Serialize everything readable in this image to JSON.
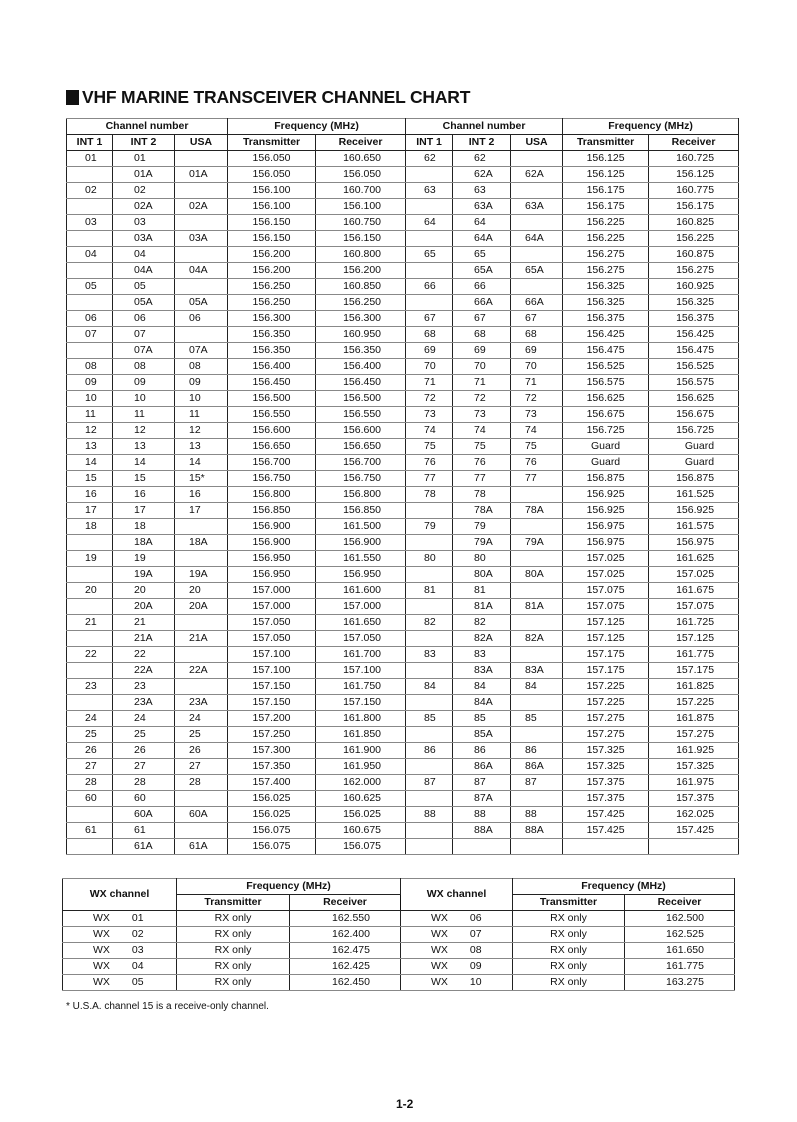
{
  "title": "VHF MARINE TRANSCEIVER CHANNEL CHART",
  "main_table": {
    "group_headers": [
      "Channel number",
      "Frequency (MHz)",
      "Channel number",
      "Frequency (MHz)"
    ],
    "column_headers": [
      "INT 1",
      "INT 2",
      "USA",
      "Transmitter",
      "Receiver",
      "INT 1",
      "INT 2",
      "USA",
      "Transmitter",
      "Receiver"
    ],
    "rows": [
      [
        "01",
        "01",
        "",
        "156.050",
        "160.650",
        "62",
        "62",
        "",
        "156.125",
        "160.725"
      ],
      [
        "",
        "01A",
        "01A",
        "156.050",
        "156.050",
        "",
        "62A",
        "62A",
        "156.125",
        "156.125"
      ],
      [
        "02",
        "02",
        "",
        "156.100",
        "160.700",
        "63",
        "63",
        "",
        "156.175",
        "160.775"
      ],
      [
        "",
        "02A",
        "02A",
        "156.100",
        "156.100",
        "",
        "63A",
        "63A",
        "156.175",
        "156.175"
      ],
      [
        "03",
        "03",
        "",
        "156.150",
        "160.750",
        "64",
        "64",
        "",
        "156.225",
        "160.825"
      ],
      [
        "",
        "03A",
        "03A",
        "156.150",
        "156.150",
        "",
        "64A",
        "64A",
        "156.225",
        "156.225"
      ],
      [
        "04",
        "04",
        "",
        "156.200",
        "160.800",
        "65",
        "65",
        "",
        "156.275",
        "160.875"
      ],
      [
        "",
        "04A",
        "04A",
        "156.200",
        "156.200",
        "",
        "65A",
        "65A",
        "156.275",
        "156.275"
      ],
      [
        "05",
        "05",
        "",
        "156.250",
        "160.850",
        "66",
        "66",
        "",
        "156.325",
        "160.925"
      ],
      [
        "",
        "05A",
        "05A",
        "156.250",
        "156.250",
        "",
        "66A",
        "66A",
        "156.325",
        "156.325"
      ],
      [
        "06",
        "06",
        "06",
        "156.300",
        "156.300",
        "67",
        "67",
        "67",
        "156.375",
        "156.375"
      ],
      [
        "07",
        "07",
        "",
        "156.350",
        "160.950",
        "68",
        "68",
        "68",
        "156.425",
        "156.425"
      ],
      [
        "",
        "07A",
        "07A",
        "156.350",
        "156.350",
        "69",
        "69",
        "69",
        "156.475",
        "156.475"
      ],
      [
        "08",
        "08",
        "08",
        "156.400",
        "156.400",
        "70",
        "70",
        "70",
        "156.525",
        "156.525"
      ],
      [
        "09",
        "09",
        "09",
        "156.450",
        "156.450",
        "71",
        "71",
        "71",
        "156.575",
        "156.575"
      ],
      [
        "10",
        "10",
        "10",
        "156.500",
        "156.500",
        "72",
        "72",
        "72",
        "156.625",
        "156.625"
      ],
      [
        "11",
        "11",
        "11",
        "156.550",
        "156.550",
        "73",
        "73",
        "73",
        "156.675",
        "156.675"
      ],
      [
        "12",
        "12",
        "12",
        "156.600",
        "156.600",
        "74",
        "74",
        "74",
        "156.725",
        "156.725"
      ],
      [
        "13",
        "13",
        "13",
        "156.650",
        "156.650",
        "75",
        "75",
        "75",
        "Guard",
        "Guard"
      ],
      [
        "14",
        "14",
        "14",
        "156.700",
        "156.700",
        "76",
        "76",
        "76",
        "Guard",
        "Guard"
      ],
      [
        "15",
        "15",
        "15*",
        "156.750",
        "156.750",
        "77",
        "77",
        "77",
        "156.875",
        "156.875"
      ],
      [
        "16",
        "16",
        "16",
        "156.800",
        "156.800",
        "78",
        "78",
        "",
        "156.925",
        "161.525"
      ],
      [
        "17",
        "17",
        "17",
        "156.850",
        "156.850",
        "",
        "78A",
        "78A",
        "156.925",
        "156.925"
      ],
      [
        "18",
        "18",
        "",
        "156.900",
        "161.500",
        "79",
        "79",
        "",
        "156.975",
        "161.575"
      ],
      [
        "",
        "18A",
        "18A",
        "156.900",
        "156.900",
        "",
        "79A",
        "79A",
        "156.975",
        "156.975"
      ],
      [
        "19",
        "19",
        "",
        "156.950",
        "161.550",
        "80",
        "80",
        "",
        "157.025",
        "161.625"
      ],
      [
        "",
        "19A",
        "19A",
        "156.950",
        "156.950",
        "",
        "80A",
        "80A",
        "157.025",
        "157.025"
      ],
      [
        "20",
        "20",
        "20",
        "157.000",
        "161.600",
        "81",
        "81",
        "",
        "157.075",
        "161.675"
      ],
      [
        "",
        "20A",
        "20A",
        "157.000",
        "157.000",
        "",
        "81A",
        "81A",
        "157.075",
        "157.075"
      ],
      [
        "21",
        "21",
        "",
        "157.050",
        "161.650",
        "82",
        "82",
        "",
        "157.125",
        "161.725"
      ],
      [
        "",
        "21A",
        "21A",
        "157.050",
        "157.050",
        "",
        "82A",
        "82A",
        "157.125",
        "157.125"
      ],
      [
        "22",
        "22",
        "",
        "157.100",
        "161.700",
        "83",
        "83",
        "",
        "157.175",
        "161.775"
      ],
      [
        "",
        "22A",
        "22A",
        "157.100",
        "157.100",
        "",
        "83A",
        "83A",
        "157.175",
        "157.175"
      ],
      [
        "23",
        "23",
        "",
        "157.150",
        "161.750",
        "84",
        "84",
        "84",
        "157.225",
        "161.825"
      ],
      [
        "",
        "23A",
        "23A",
        "157.150",
        "157.150",
        "",
        "84A",
        "",
        "157.225",
        "157.225"
      ],
      [
        "24",
        "24",
        "24",
        "157.200",
        "161.800",
        "85",
        "85",
        "85",
        "157.275",
        "161.875"
      ],
      [
        "25",
        "25",
        "25",
        "157.250",
        "161.850",
        "",
        "85A",
        "",
        "157.275",
        "157.275"
      ],
      [
        "26",
        "26",
        "26",
        "157.300",
        "161.900",
        "86",
        "86",
        "86",
        "157.325",
        "161.925"
      ],
      [
        "27",
        "27",
        "27",
        "157.350",
        "161.950",
        "",
        "86A",
        "86A",
        "157.325",
        "157.325"
      ],
      [
        "28",
        "28",
        "28",
        "157.400",
        "162.000",
        "87",
        "87",
        "87",
        "157.375",
        "161.975"
      ],
      [
        "60",
        "60",
        "",
        "156.025",
        "160.625",
        "",
        "87A",
        "",
        "157.375",
        "157.375"
      ],
      [
        "",
        "60A",
        "60A",
        "156.025",
        "156.025",
        "88",
        "88",
        "88",
        "157.425",
        "162.025"
      ],
      [
        "61",
        "61",
        "",
        "156.075",
        "160.675",
        "",
        "88A",
        "88A",
        "157.425",
        "157.425"
      ],
      [
        "",
        "61A",
        "61A",
        "156.075",
        "156.075",
        "",
        "",
        "",
        "",
        ""
      ]
    ]
  },
  "wx_table": {
    "headers": {
      "channel": "WX channel",
      "frequency": "Frequency (MHz)",
      "transmitter": "Transmitter",
      "receiver": "Receiver"
    },
    "rows": [
      [
        "WX",
        "01",
        "RX only",
        "162.550",
        "WX",
        "06",
        "RX only",
        "162.500"
      ],
      [
        "WX",
        "02",
        "RX only",
        "162.400",
        "WX",
        "07",
        "RX only",
        "162.525"
      ],
      [
        "WX",
        "03",
        "RX only",
        "162.475",
        "WX",
        "08",
        "RX only",
        "161.650"
      ],
      [
        "WX",
        "04",
        "RX only",
        "162.425",
        "WX",
        "09",
        "RX only",
        "161.775"
      ],
      [
        "WX",
        "05",
        "RX only",
        "162.450",
        "WX",
        "10",
        "RX only",
        "163.275"
      ]
    ]
  },
  "footnote": "* U.S.A. channel 15 is a receive-only channel.",
  "page_number": "1-2"
}
